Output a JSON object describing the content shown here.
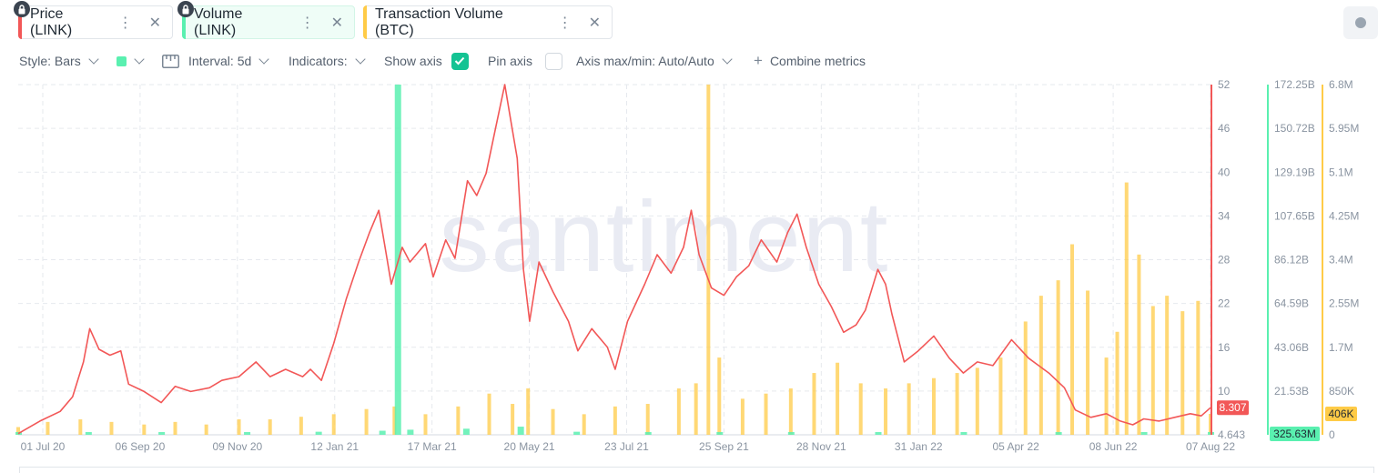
{
  "tabs": [
    {
      "label": "Price (LINK)",
      "color": "#f25757"
    },
    {
      "label": "Volume (LINK)",
      "color": "#5af0b0"
    },
    {
      "label": "Transaction Volume (BTC)",
      "color": "#ffcb47"
    }
  ],
  "toolbar": {
    "style_label": "Style: Bars",
    "interval_label": "Interval: 5d",
    "indicators_label": "Indicators:",
    "show_axis_label": "Show axis",
    "show_axis_checked": true,
    "pin_axis_label": "Pin axis",
    "pin_axis_checked": false,
    "axis_maxmin_label": "Axis max/min: Auto/Auto",
    "combine_label": "Combine metrics"
  },
  "watermark": "santiment",
  "chart_data": {
    "type": "line",
    "x_ticks": [
      "01 Jul 20",
      "06 Sep 20",
      "09 Nov 20",
      "12 Jan 21",
      "17 Mar 21",
      "20 May 21",
      "23 Jul 21",
      "25 Sep 21",
      "28 Nov 21",
      "31 Jan 22",
      "05 Apr 22",
      "08 Jun 22",
      "07 Aug 22"
    ],
    "x_range": [
      "2020-07-01",
      "2022-08-07"
    ],
    "grid": true,
    "axes": [
      {
        "name": "Price (LINK)",
        "color": "#f25757",
        "ticks": [
          "52",
          "46",
          "40",
          "34",
          "28",
          "22",
          "16",
          "10",
          "4.643"
        ],
        "ylim": [
          4.643,
          52
        ],
        "current_value": "8.307"
      },
      {
        "name": "Volume (LINK)",
        "color": "#5af0b0",
        "ticks": [
          "172.25B",
          "150.72B",
          "129.19B",
          "107.65B",
          "86.12B",
          "64.59B",
          "43.06B",
          "21.53B",
          ""
        ],
        "ylim": [
          0,
          172.25
        ],
        "current_value": "325.63M"
      },
      {
        "name": "Transaction Volume (BTC)",
        "color": "#ffcb47",
        "ticks": [
          "6.8M",
          "5.95M",
          "5.1M",
          "4.25M",
          "3.4M",
          "2.55M",
          "1.7M",
          "850K",
          "0"
        ],
        "ylim": [
          0,
          6.8
        ],
        "current_value": "406K"
      }
    ],
    "series": [
      {
        "name": "Price (LINK)",
        "type": "line",
        "unit": "USD",
        "points": [
          [
            "2020-07-01",
            4.8
          ],
          [
            "2020-07-15",
            6.5
          ],
          [
            "2020-07-28",
            7.8
          ],
          [
            "2020-08-05",
            9.8
          ],
          [
            "2020-08-12",
            14.5
          ],
          [
            "2020-08-16",
            19.0
          ],
          [
            "2020-08-22",
            16.2
          ],
          [
            "2020-08-29",
            15.4
          ],
          [
            "2020-09-05",
            16.0
          ],
          [
            "2020-09-10",
            11.5
          ],
          [
            "2020-09-20",
            10.5
          ],
          [
            "2020-10-01",
            9.0
          ],
          [
            "2020-10-10",
            11.2
          ],
          [
            "2020-10-20",
            10.5
          ],
          [
            "2020-11-01",
            11.0
          ],
          [
            "2020-11-09",
            12.0
          ],
          [
            "2020-11-20",
            12.5
          ],
          [
            "2020-12-01",
            14.5
          ],
          [
            "2020-12-10",
            12.5
          ],
          [
            "2020-12-20",
            13.5
          ],
          [
            "2020-12-31",
            12.5
          ],
          [
            "2021-01-05",
            13.5
          ],
          [
            "2021-01-12",
            12.0
          ],
          [
            "2021-01-20",
            17.0
          ],
          [
            "2021-01-28",
            23.0
          ],
          [
            "2021-02-05",
            28.0
          ],
          [
            "2021-02-12",
            32.0
          ],
          [
            "2021-02-18",
            35.0
          ],
          [
            "2021-02-22",
            30.0
          ],
          [
            "2021-02-26",
            25.0
          ],
          [
            "2021-03-05",
            30.0
          ],
          [
            "2021-03-10",
            28.0
          ],
          [
            "2021-03-20",
            30.5
          ],
          [
            "2021-03-25",
            26.0
          ],
          [
            "2021-04-02",
            31.0
          ],
          [
            "2021-04-08",
            28.5
          ],
          [
            "2021-04-16",
            39.0
          ],
          [
            "2021-04-22",
            37.0
          ],
          [
            "2021-04-28",
            40.0
          ],
          [
            "2021-05-04",
            46.0
          ],
          [
            "2021-05-10",
            52.0
          ],
          [
            "2021-05-14",
            47.0
          ],
          [
            "2021-05-18",
            42.0
          ],
          [
            "2021-05-22",
            27.0
          ],
          [
            "2021-05-26",
            20.0
          ],
          [
            "2021-06-01",
            28.0
          ],
          [
            "2021-06-10",
            24.0
          ],
          [
            "2021-06-20",
            20.0
          ],
          [
            "2021-06-26",
            16.0
          ],
          [
            "2021-07-05",
            19.0
          ],
          [
            "2021-07-15",
            16.5
          ],
          [
            "2021-07-20",
            13.5
          ],
          [
            "2021-07-28",
            20.0
          ],
          [
            "2021-08-08",
            25.0
          ],
          [
            "2021-08-16",
            29.0
          ],
          [
            "2021-08-25",
            26.5
          ],
          [
            "2021-09-02",
            30.0
          ],
          [
            "2021-09-07",
            35.0
          ],
          [
            "2021-09-12",
            29.0
          ],
          [
            "2021-09-20",
            24.5
          ],
          [
            "2021-09-28",
            23.5
          ],
          [
            "2021-10-06",
            26.0
          ],
          [
            "2021-10-14",
            27.5
          ],
          [
            "2021-10-22",
            31.0
          ],
          [
            "2021-11-01",
            28.0
          ],
          [
            "2021-11-08",
            32.0
          ],
          [
            "2021-11-14",
            34.5
          ],
          [
            "2021-11-20",
            30.0
          ],
          [
            "2021-11-28",
            25.0
          ],
          [
            "2021-12-06",
            22.0
          ],
          [
            "2021-12-14",
            18.5
          ],
          [
            "2021-12-22",
            19.5
          ],
          [
            "2021-12-28",
            21.5
          ],
          [
            "2022-01-05",
            27.0
          ],
          [
            "2022-01-10",
            25.0
          ],
          [
            "2022-01-14",
            21.0
          ],
          [
            "2022-01-22",
            14.5
          ],
          [
            "2022-01-31",
            16.0
          ],
          [
            "2022-02-10",
            18.0
          ],
          [
            "2022-02-20",
            15.0
          ],
          [
            "2022-03-01",
            13.0
          ],
          [
            "2022-03-10",
            14.5
          ],
          [
            "2022-03-20",
            14.0
          ],
          [
            "2022-04-01",
            17.5
          ],
          [
            "2022-04-12",
            15.0
          ],
          [
            "2022-04-25",
            13.0
          ],
          [
            "2022-05-05",
            11.0
          ],
          [
            "2022-05-12",
            8.0
          ],
          [
            "2022-05-22",
            7.0
          ],
          [
            "2022-06-01",
            7.5
          ],
          [
            "2022-06-10",
            6.5
          ],
          [
            "2022-06-18",
            6.0
          ],
          [
            "2022-06-25",
            6.8
          ],
          [
            "2022-07-05",
            6.5
          ],
          [
            "2022-07-15",
            7.0
          ],
          [
            "2022-07-25",
            7.5
          ],
          [
            "2022-08-01",
            7.2
          ],
          [
            "2022-08-07",
            8.307
          ]
        ]
      },
      {
        "name": "Volume (LINK)",
        "type": "bar",
        "unit": "B",
        "points": [
          [
            "2020-07-01",
            0.3
          ],
          [
            "2020-08-15",
            1.2
          ],
          [
            "2020-10-01",
            0.8
          ],
          [
            "2020-11-25",
            0.6
          ],
          [
            "2021-01-10",
            1.5
          ],
          [
            "2021-02-20",
            2.0
          ],
          [
            "2021-03-02",
            172.25
          ],
          [
            "2021-03-10",
            2.5
          ],
          [
            "2021-04-15",
            3.0
          ],
          [
            "2021-05-20",
            4.0
          ],
          [
            "2021-06-25",
            1.5
          ],
          [
            "2021-08-10",
            1.0
          ],
          [
            "2021-09-25",
            1.2
          ],
          [
            "2021-11-10",
            0.9
          ],
          [
            "2022-01-05",
            0.7
          ],
          [
            "2022-03-01",
            0.5
          ],
          [
            "2022-05-01",
            0.5
          ],
          [
            "2022-06-25",
            0.4
          ],
          [
            "2022-08-07",
            0.33
          ]
        ]
      },
      {
        "name": "Transaction Volume (BTC)",
        "type": "bar",
        "unit": "M",
        "points": [
          [
            "2020-07-01",
            0.15
          ],
          [
            "2020-07-20",
            0.25
          ],
          [
            "2020-08-10",
            0.3
          ],
          [
            "2020-08-30",
            0.25
          ],
          [
            "2020-09-20",
            0.2
          ],
          [
            "2020-10-10",
            0.25
          ],
          [
            "2020-10-30",
            0.2
          ],
          [
            "2020-11-20",
            0.3
          ],
          [
            "2020-12-10",
            0.3
          ],
          [
            "2020-12-30",
            0.35
          ],
          [
            "2021-01-20",
            0.4
          ],
          [
            "2021-02-10",
            0.5
          ],
          [
            "2021-02-28",
            0.55
          ],
          [
            "2021-03-20",
            0.4
          ],
          [
            "2021-04-10",
            0.55
          ],
          [
            "2021-04-30",
            0.8
          ],
          [
            "2021-05-15",
            0.6
          ],
          [
            "2021-05-25",
            0.9
          ],
          [
            "2021-06-10",
            0.5
          ],
          [
            "2021-06-30",
            0.4
          ],
          [
            "2021-07-20",
            0.55
          ],
          [
            "2021-08-10",
            0.6
          ],
          [
            "2021-08-30",
            0.9
          ],
          [
            "2021-09-10",
            1.0
          ],
          [
            "2021-09-18",
            6.8
          ],
          [
            "2021-09-25",
            1.5
          ],
          [
            "2021-10-10",
            0.7
          ],
          [
            "2021-10-25",
            0.8
          ],
          [
            "2021-11-10",
            0.9
          ],
          [
            "2021-11-25",
            1.2
          ],
          [
            "2021-12-10",
            1.4
          ],
          [
            "2021-12-25",
            1.0
          ],
          [
            "2022-01-10",
            0.9
          ],
          [
            "2022-01-25",
            1.0
          ],
          [
            "2022-02-10",
            1.1
          ],
          [
            "2022-02-25",
            1.2
          ],
          [
            "2022-03-10",
            1.3
          ],
          [
            "2022-03-25",
            1.5
          ],
          [
            "2022-04-10",
            2.2
          ],
          [
            "2022-04-20",
            2.7
          ],
          [
            "2022-05-01",
            3.0
          ],
          [
            "2022-05-10",
            3.7
          ],
          [
            "2022-05-20",
            2.8
          ],
          [
            "2022-06-01",
            1.5
          ],
          [
            "2022-06-08",
            2.0
          ],
          [
            "2022-06-14",
            4.9
          ],
          [
            "2022-06-22",
            3.5
          ],
          [
            "2022-07-01",
            2.5
          ],
          [
            "2022-07-10",
            2.7
          ],
          [
            "2022-07-20",
            2.4
          ],
          [
            "2022-07-30",
            2.6
          ],
          [
            "2022-08-07",
            0.406
          ]
        ]
      }
    ]
  }
}
